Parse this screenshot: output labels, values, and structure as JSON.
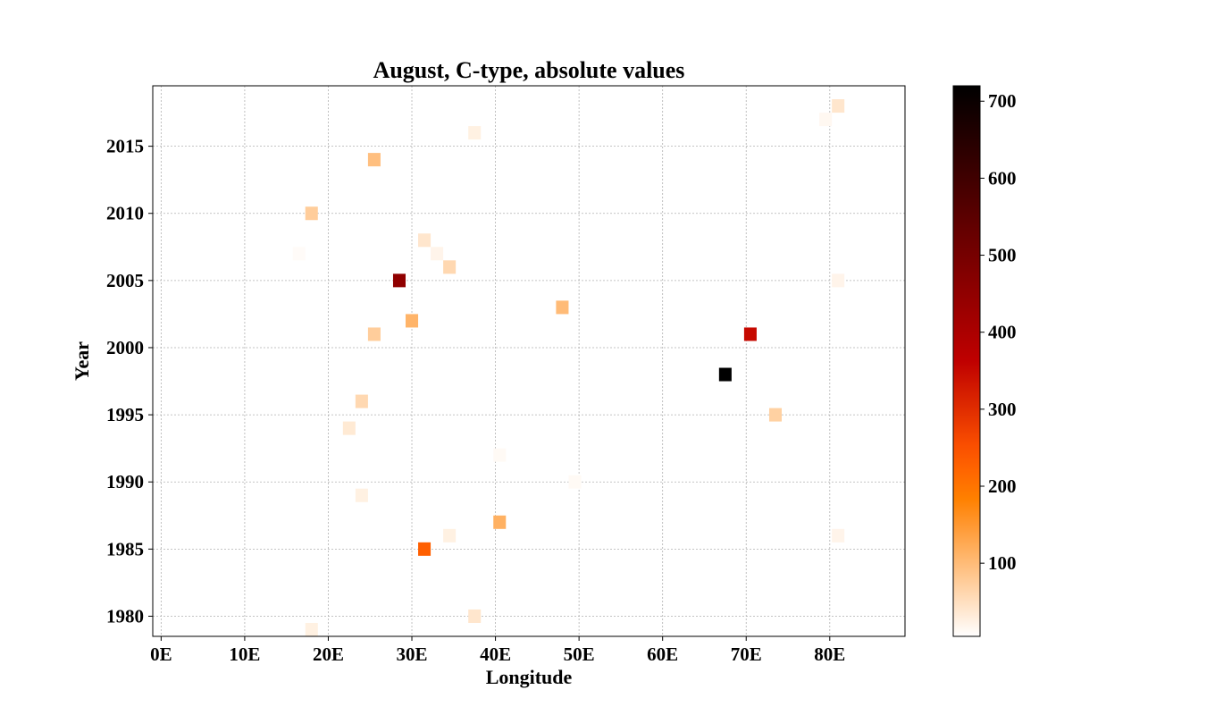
{
  "chart_data": {
    "type": "heatmap",
    "title": "August, C-type, absolute values",
    "xlabel": "Longitude",
    "ylabel": "Year",
    "xlim": [
      -1,
      89
    ],
    "ylim": [
      1978.5,
      2019.5
    ],
    "grid": true,
    "cell_width_deg": 1.5,
    "cell_height_years": 1,
    "x_ticks": [
      {
        "value": 0,
        "label": "0E"
      },
      {
        "value": 10,
        "label": "10E"
      },
      {
        "value": 20,
        "label": "20E"
      },
      {
        "value": 30,
        "label": "30E"
      },
      {
        "value": 40,
        "label": "40E"
      },
      {
        "value": 50,
        "label": "50E"
      },
      {
        "value": 60,
        "label": "60E"
      },
      {
        "value": 70,
        "label": "70E"
      },
      {
        "value": 80,
        "label": "80E"
      }
    ],
    "y_ticks": [
      {
        "value": 1980,
        "label": "1980"
      },
      {
        "value": 1985,
        "label": "1985"
      },
      {
        "value": 1990,
        "label": "1990"
      },
      {
        "value": 1995,
        "label": "1995"
      },
      {
        "value": 2000,
        "label": "2000"
      },
      {
        "value": 2005,
        "label": "2005"
      },
      {
        "value": 2010,
        "label": "2010"
      },
      {
        "value": 2015,
        "label": "2015"
      }
    ],
    "colorbar": {
      "colormap": "gist_heat_r",
      "vmin": 5,
      "vmax": 720,
      "ticks": [
        {
          "value": 100,
          "label": "100"
        },
        {
          "value": 200,
          "label": "200"
        },
        {
          "value": 300,
          "label": "300"
        },
        {
          "value": 400,
          "label": "400"
        },
        {
          "value": 500,
          "label": "500"
        },
        {
          "value": 600,
          "label": "600"
        },
        {
          "value": 700,
          "label": "700"
        }
      ]
    },
    "points": [
      {
        "lon": 81,
        "year": 2018,
        "value": 40
      },
      {
        "lon": 79.5,
        "year": 2017,
        "value": 15
      },
      {
        "lon": 37.5,
        "year": 2016,
        "value": 25
      },
      {
        "lon": 25.5,
        "year": 2014,
        "value": 95
      },
      {
        "lon": 18,
        "year": 2010,
        "value": 75
      },
      {
        "lon": 31.5,
        "year": 2008,
        "value": 40
      },
      {
        "lon": 33,
        "year": 2007,
        "value": 20
      },
      {
        "lon": 16.5,
        "year": 2007,
        "value": 10
      },
      {
        "lon": 34.5,
        "year": 2006,
        "value": 60
      },
      {
        "lon": 28.5,
        "year": 2005,
        "value": 450
      },
      {
        "lon": 81,
        "year": 2005,
        "value": 20
      },
      {
        "lon": 48,
        "year": 2003,
        "value": 100
      },
      {
        "lon": 30,
        "year": 2002,
        "value": 110
      },
      {
        "lon": 25.5,
        "year": 2001,
        "value": 75
      },
      {
        "lon": 70.5,
        "year": 2001,
        "value": 350
      },
      {
        "lon": 67.5,
        "year": 1998,
        "value": 720
      },
      {
        "lon": 24,
        "year": 1996,
        "value": 60
      },
      {
        "lon": 73.5,
        "year": 1995,
        "value": 70
      },
      {
        "lon": 22.5,
        "year": 1994,
        "value": 35
      },
      {
        "lon": 40.5,
        "year": 1992,
        "value": 12
      },
      {
        "lon": 49.5,
        "year": 1990,
        "value": 12
      },
      {
        "lon": 24,
        "year": 1989,
        "value": 25
      },
      {
        "lon": 40.5,
        "year": 1987,
        "value": 115
      },
      {
        "lon": 34.5,
        "year": 1986,
        "value": 25
      },
      {
        "lon": 81,
        "year": 1986,
        "value": 20
      },
      {
        "lon": 31.5,
        "year": 1985,
        "value": 230
      },
      {
        "lon": 37.5,
        "year": 1980,
        "value": 40
      },
      {
        "lon": 18,
        "year": 1979,
        "value": 25
      }
    ]
  }
}
